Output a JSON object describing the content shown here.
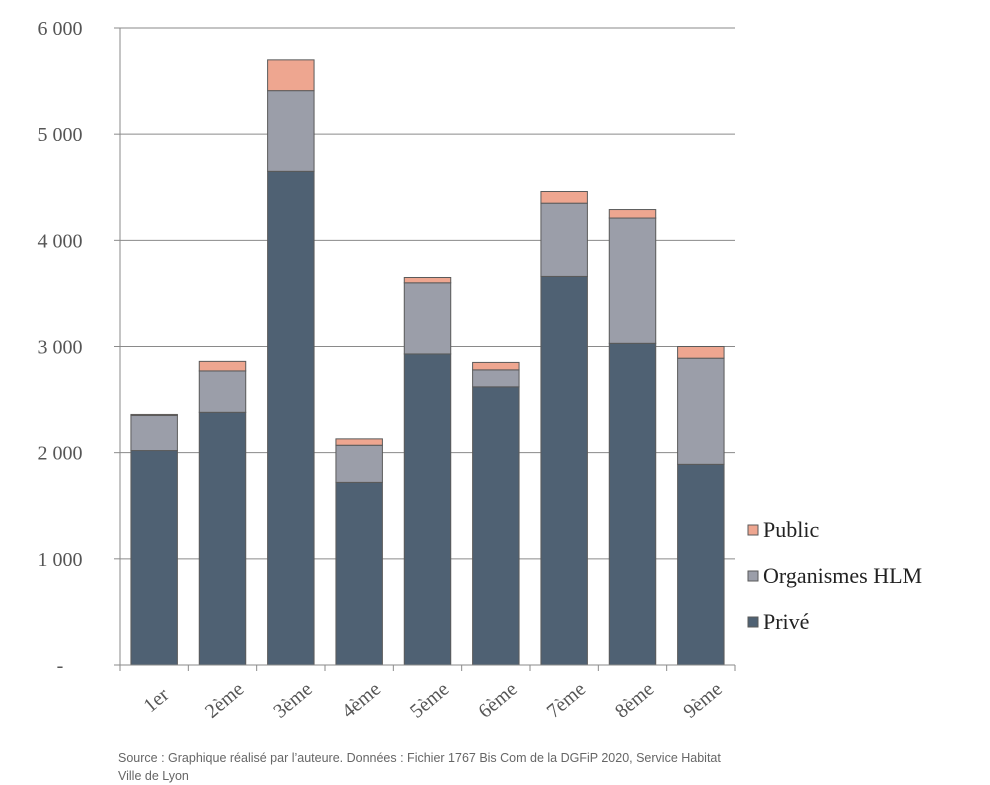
{
  "chart_data": {
    "type": "bar",
    "stacked": true,
    "categories": [
      "1er",
      "2ème",
      "3ème",
      "4ème",
      "5ème",
      "6ème",
      "7ème",
      "8ème",
      "9ème"
    ],
    "series": [
      {
        "name": "Privé",
        "color": "#4f6173",
        "values": [
          2020,
          2380,
          4650,
          1720,
          2930,
          2620,
          3660,
          3030,
          1890
        ]
      },
      {
        "name": "Organismes HLM",
        "color": "#9b9ea9",
        "values": [
          330,
          390,
          760,
          350,
          670,
          160,
          690,
          1180,
          1000
        ]
      },
      {
        "name": "Public",
        "color": "#eea690",
        "values": [
          10,
          90,
          290,
          60,
          50,
          70,
          110,
          80,
          110
        ]
      }
    ],
    "yticks": [
      "-",
      "1 000",
      "2 000",
      "3 000",
      "4 000",
      "5 000",
      "6 000"
    ],
    "ylim": [
      0,
      6000
    ],
    "ystep": 1000,
    "grid": true,
    "legend_position": "right",
    "legend_order": [
      "Public",
      "Organismes HLM",
      "Privé"
    ],
    "title": "",
    "xlabel": "",
    "ylabel": ""
  },
  "source_note": "Source : Graphique réalisé par l’auteure. Données : Fichier 1767 Bis Com de la DGFiP 2020, Service Habitat Ville de Lyon"
}
